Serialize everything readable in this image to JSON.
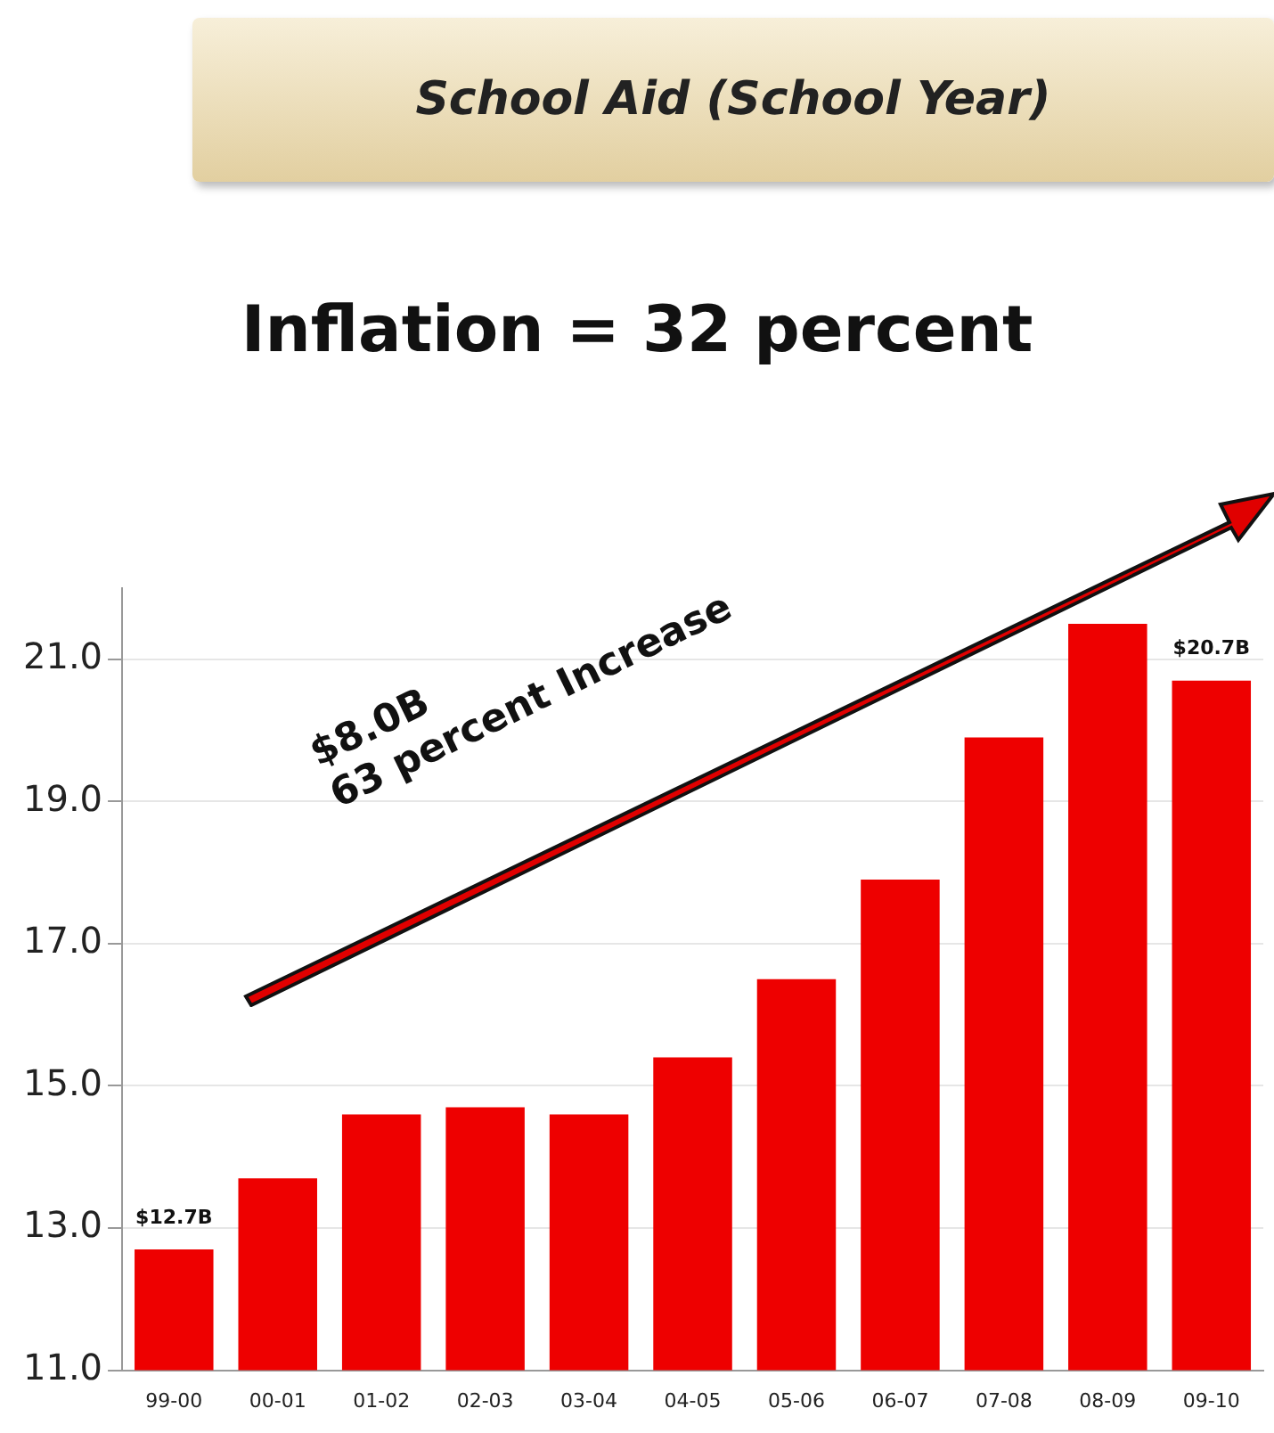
{
  "chart_data": {
    "type": "bar",
    "title": "School Aid (School Year)",
    "subtitle": "Inflation = 32 percent",
    "categories": [
      "99-00",
      "00-01",
      "01-02",
      "02-03",
      "03-04",
      "04-05",
      "05-06",
      "06-07",
      "07-08",
      "08-09",
      "09-10"
    ],
    "values": [
      12.7,
      13.7,
      14.6,
      14.7,
      14.6,
      15.4,
      16.5,
      17.9,
      19.9,
      21.5,
      20.7
    ],
    "value_labels": [
      "$12.7B",
      null,
      null,
      null,
      null,
      null,
      null,
      null,
      null,
      null,
      "$20.7B"
    ],
    "color": "#ee0000",
    "ylim": [
      11,
      22
    ],
    "yticks": [
      {
        "value": 11,
        "label": "11.0"
      },
      {
        "value": 13,
        "label": "13.0"
      },
      {
        "value": 15,
        "label": "15.0"
      },
      {
        "value": 17,
        "label": "17.0"
      },
      {
        "value": 19,
        "label": "19.0"
      },
      {
        "value": 21,
        "label": "21.0"
      }
    ],
    "grid": "y",
    "legend": false,
    "annotations": [
      "$8.0B",
      "63 percent Increase"
    ]
  }
}
